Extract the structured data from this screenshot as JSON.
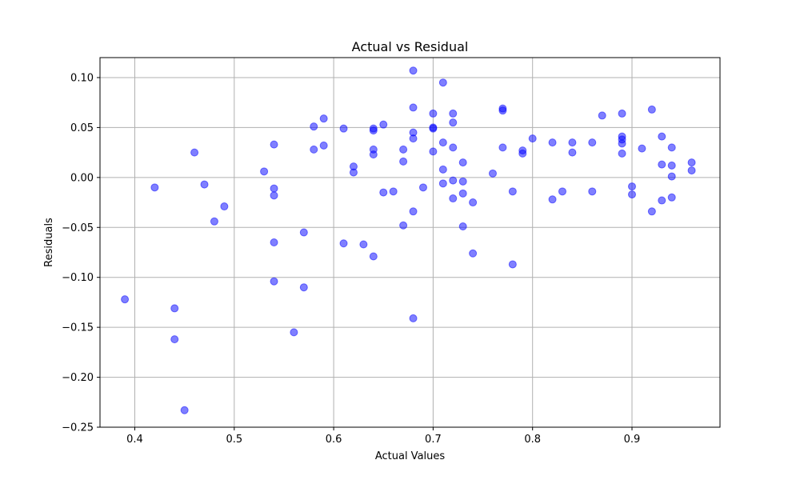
{
  "chart_data": {
    "type": "scatter",
    "title": "Actual vs Residual",
    "xlabel": "Actual Values",
    "ylabel": "Residuals",
    "xlim": [
      0.365,
      0.9885
    ],
    "ylim": [
      -0.25,
      0.12
    ],
    "x_ticks": [
      0.4,
      0.5,
      0.6,
      0.7,
      0.8,
      0.9
    ],
    "x_tick_labels": [
      "0.4",
      "0.5",
      "0.6",
      "0.7",
      "0.8",
      "0.9"
    ],
    "y_ticks": [
      -0.25,
      -0.2,
      -0.15,
      -0.1,
      -0.05,
      0.0,
      0.05,
      0.1
    ],
    "y_tick_labels": [
      "−0.25",
      "−0.20",
      "−0.15",
      "−0.10",
      "−0.05",
      "0.00",
      "0.05",
      "0.10"
    ],
    "grid": true,
    "marker_color": "#0000ff",
    "marker_alpha": 0.5,
    "points": [
      [
        0.39,
        -0.122
      ],
      [
        0.42,
        -0.01
      ],
      [
        0.44,
        -0.131
      ],
      [
        0.44,
        -0.162
      ],
      [
        0.45,
        -0.233
      ],
      [
        0.46,
        0.025
      ],
      [
        0.47,
        -0.007
      ],
      [
        0.48,
        -0.044
      ],
      [
        0.49,
        -0.029
      ],
      [
        0.53,
        0.006
      ],
      [
        0.54,
        0.033
      ],
      [
        0.54,
        -0.011
      ],
      [
        0.54,
        -0.018
      ],
      [
        0.54,
        -0.065
      ],
      [
        0.54,
        -0.104
      ],
      [
        0.56,
        -0.155
      ],
      [
        0.57,
        -0.055
      ],
      [
        0.57,
        -0.11
      ],
      [
        0.58,
        0.051
      ],
      [
        0.58,
        0.028
      ],
      [
        0.59,
        0.059
      ],
      [
        0.59,
        0.032
      ],
      [
        0.61,
        0.049
      ],
      [
        0.61,
        -0.066
      ],
      [
        0.62,
        0.011
      ],
      [
        0.62,
        0.005
      ],
      [
        0.63,
        -0.067
      ],
      [
        0.64,
        0.049
      ],
      [
        0.64,
        0.047
      ],
      [
        0.64,
        0.028
      ],
      [
        0.64,
        0.023
      ],
      [
        0.64,
        -0.079
      ],
      [
        0.65,
        0.053
      ],
      [
        0.65,
        -0.015
      ],
      [
        0.66,
        -0.014
      ],
      [
        0.67,
        0.028
      ],
      [
        0.67,
        0.016
      ],
      [
        0.67,
        -0.048
      ],
      [
        0.68,
        0.107
      ],
      [
        0.68,
        0.07
      ],
      [
        0.68,
        0.045
      ],
      [
        0.68,
        0.039
      ],
      [
        0.68,
        -0.034
      ],
      [
        0.68,
        -0.141
      ],
      [
        0.69,
        -0.01
      ],
      [
        0.7,
        0.064
      ],
      [
        0.7,
        0.05
      ],
      [
        0.7,
        0.049
      ],
      [
        0.7,
        0.026
      ],
      [
        0.71,
        0.095
      ],
      [
        0.71,
        0.035
      ],
      [
        0.71,
        0.008
      ],
      [
        0.71,
        -0.006
      ],
      [
        0.72,
        0.064
      ],
      [
        0.72,
        0.055
      ],
      [
        0.72,
        0.03
      ],
      [
        0.72,
        -0.003
      ],
      [
        0.72,
        -0.021
      ],
      [
        0.73,
        0.015
      ],
      [
        0.73,
        -0.004
      ],
      [
        0.73,
        -0.016
      ],
      [
        0.73,
        -0.049
      ],
      [
        0.74,
        -0.025
      ],
      [
        0.74,
        -0.076
      ],
      [
        0.76,
        0.004
      ],
      [
        0.77,
        0.069
      ],
      [
        0.77,
        0.067
      ],
      [
        0.77,
        0.03
      ],
      [
        0.78,
        -0.014
      ],
      [
        0.78,
        -0.087
      ],
      [
        0.79,
        0.027
      ],
      [
        0.79,
        0.024
      ],
      [
        0.8,
        0.039
      ],
      [
        0.82,
        0.035
      ],
      [
        0.82,
        -0.022
      ],
      [
        0.83,
        -0.014
      ],
      [
        0.84,
        0.035
      ],
      [
        0.84,
        0.025
      ],
      [
        0.86,
        0.035
      ],
      [
        0.86,
        -0.014
      ],
      [
        0.87,
        0.062
      ],
      [
        0.89,
        0.064
      ],
      [
        0.89,
        0.041
      ],
      [
        0.89,
        0.038
      ],
      [
        0.89,
        0.034
      ],
      [
        0.89,
        0.024
      ],
      [
        0.9,
        -0.009
      ],
      [
        0.9,
        -0.017
      ],
      [
        0.91,
        0.029
      ],
      [
        0.92,
        0.068
      ],
      [
        0.92,
        -0.034
      ],
      [
        0.93,
        0.041
      ],
      [
        0.93,
        0.013
      ],
      [
        0.93,
        -0.023
      ],
      [
        0.94,
        0.03
      ],
      [
        0.94,
        0.012
      ],
      [
        0.94,
        0.001
      ],
      [
        0.94,
        -0.02
      ],
      [
        0.96,
        0.015
      ],
      [
        0.96,
        0.007
      ]
    ]
  }
}
